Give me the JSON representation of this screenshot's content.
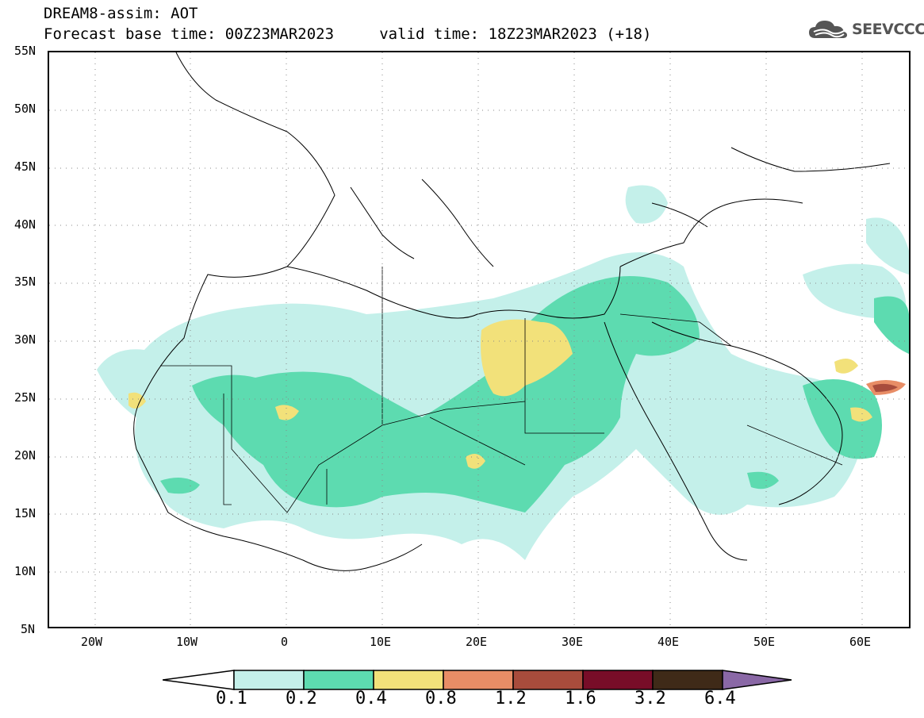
{
  "title": {
    "line1": "DREAM8-assim: AOT",
    "line2": "Forecast base time: 00Z23MAR2023     valid time: 18Z23MAR2023 (+18)"
  },
  "logo": {
    "text": "SEEVCCC",
    "icon": "cloud-logo-icon"
  },
  "axes": {
    "lat_labels": [
      "55N",
      "50N",
      "45N",
      "40N",
      "35N",
      "30N",
      "25N",
      "20N",
      "15N",
      "10N",
      "5N"
    ],
    "lon_labels": [
      "20W",
      "10W",
      "0",
      "10E",
      "20E",
      "30E",
      "40E",
      "50E",
      "60E"
    ],
    "lat_range": [
      5,
      55
    ],
    "lon_range": [
      -25,
      65
    ],
    "grid": "dotted"
  },
  "colorbar": {
    "levels": [
      "0.1",
      "0.2",
      "0.4",
      "0.8",
      "1.2",
      "1.6",
      "3.2",
      "6.4"
    ],
    "colors": [
      "#c4f0ea",
      "#5ddbb0",
      "#f2e17a",
      "#e88d66",
      "#a84c3c",
      "#780d28",
      "#3f2a18",
      "#8a68a6"
    ],
    "extend": "both"
  },
  "colors": {
    "light_cyan": "#c4f0ea",
    "green": "#5ddbb0",
    "yellow": "#f2e17a",
    "orange": "#e88d66",
    "brown_red": "#a84c3c"
  }
}
